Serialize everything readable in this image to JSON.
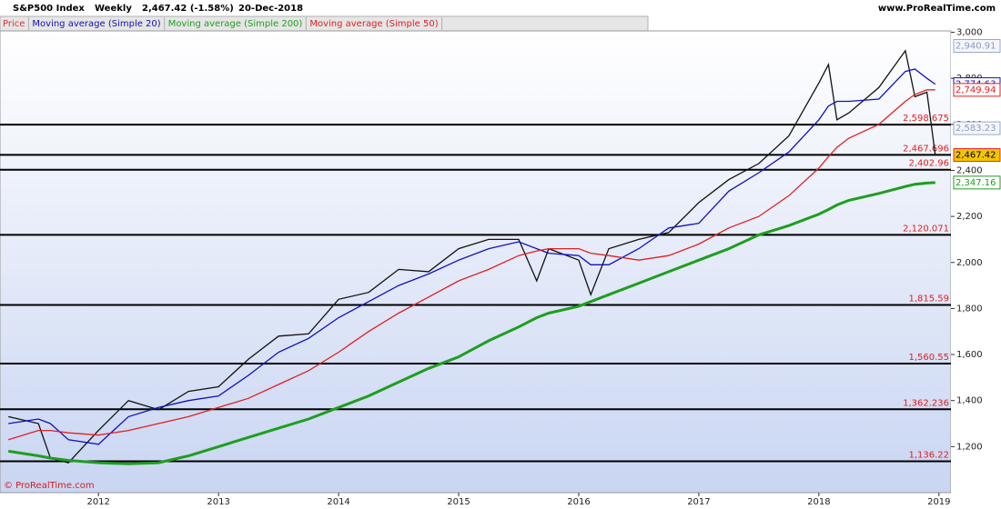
{
  "chart_data": {
    "type": "line",
    "title": "S&P500 Index",
    "period": "Weekly",
    "last": "2,467.42 (-1.58%)",
    "date": "20-Dec-2018",
    "site": "www.ProRealTime.com",
    "footer": "© ProRealTime.com",
    "x": [
      2011.25,
      2011.5,
      2011.6,
      2011.75,
      2012.0,
      2012.25,
      2012.5,
      2012.75,
      2013.0,
      2013.25,
      2013.5,
      2013.75,
      2014.0,
      2014.25,
      2014.5,
      2014.75,
      2015.0,
      2015.25,
      2015.5,
      2015.65,
      2015.75,
      2016.0,
      2016.1,
      2016.25,
      2016.5,
      2016.75,
      2017.0,
      2017.25,
      2017.5,
      2017.75,
      2018.0,
      2018.08,
      2018.15,
      2018.25,
      2018.5,
      2018.72,
      2018.8,
      2018.9,
      2018.97
    ],
    "series": [
      {
        "name": "Price",
        "color": "#111111",
        "label_color": "#e03030",
        "last_label": "2,467.42",
        "box_color": "#f5c400",
        "values": [
          1330,
          1300,
          1150,
          1130,
          1270,
          1400,
          1360,
          1440,
          1460,
          1580,
          1680,
          1690,
          1840,
          1870,
          1970,
          1960,
          2060,
          2100,
          2100,
          1920,
          2060,
          2010,
          1860,
          2060,
          2100,
          2130,
          2260,
          2360,
          2430,
          2550,
          2780,
          2860,
          2620,
          2650,
          2760,
          2920,
          2720,
          2740,
          2467
        ]
      },
      {
        "name": "Moving average (Simple 20)",
        "color": "#1010c0",
        "label_color": "#1010c0",
        "last_label": "2,774.63",
        "box_color": "#ffffff",
        "values": [
          1300,
          1320,
          1300,
          1230,
          1210,
          1330,
          1370,
          1400,
          1420,
          1510,
          1610,
          1670,
          1760,
          1830,
          1900,
          1950,
          2010,
          2060,
          2090,
          2060,
          2040,
          2030,
          1990,
          1990,
          2060,
          2150,
          2170,
          2310,
          2390,
          2480,
          2620,
          2680,
          2700,
          2700,
          2710,
          2830,
          2840,
          2800,
          2774.63
        ]
      },
      {
        "name": "Moving average (Simple 200)",
        "color": "#1e9e1e",
        "label_color": "#1e9e1e",
        "last_label": "2,347.16",
        "box_color": "#ffffff",
        "values": [
          1180,
          1160,
          1150,
          1140,
          1130,
          1125,
          1130,
          1160,
          1200,
          1240,
          1280,
          1320,
          1370,
          1420,
          1480,
          1540,
          1590,
          1660,
          1720,
          1760,
          1780,
          1810,
          1830,
          1860,
          1910,
          1960,
          2010,
          2060,
          2120,
          2160,
          2210,
          2230,
          2250,
          2270,
          2300,
          2330,
          2340,
          2345,
          2347.16
        ]
      },
      {
        "name": "Moving average (Simple 50)",
        "color": "#e02020",
        "label_color": "#e02020",
        "last_label": "2,749.94",
        "box_color": "#ffffff",
        "values": [
          1230,
          1270,
          1270,
          1260,
          1250,
          1270,
          1300,
          1330,
          1370,
          1410,
          1470,
          1530,
          1610,
          1700,
          1780,
          1850,
          1920,
          1970,
          2030,
          2050,
          2060,
          2060,
          2040,
          2030,
          2010,
          2030,
          2080,
          2150,
          2200,
          2290,
          2410,
          2460,
          2500,
          2540,
          2600,
          2700,
          2730,
          2750,
          2749.94
        ]
      }
    ],
    "levels": [
      {
        "value": 2598.675,
        "label": "2,598.675"
      },
      {
        "value": 2467.696,
        "label": "2,467.696"
      },
      {
        "value": 2402.96,
        "label": "2,402.96"
      },
      {
        "value": 2120.071,
        "label": "2,120.071"
      },
      {
        "value": 1815.59,
        "label": "1,815.59"
      },
      {
        "value": 1560.55,
        "label": "1,560.55"
      },
      {
        "value": 1362.236,
        "label": "1,362.236"
      },
      {
        "value": 1136.22,
        "label": "1,136.22"
      }
    ],
    "channel_labels": [
      {
        "value": 2940.91,
        "label": "2,940.91"
      },
      {
        "value": 2583.23,
        "label": "2,583.23"
      }
    ],
    "xlim": [
      2011.18,
      2019.1
    ],
    "xticks": [
      2012,
      2013,
      2014,
      2015,
      2016,
      2017,
      2018,
      2019
    ],
    "ylim": [
      1000,
      3010
    ],
    "yticks": [
      {
        "value": 1200,
        "label": "1,200"
      },
      {
        "value": 1400,
        "label": "1,400"
      },
      {
        "value": 1600,
        "label": "1,600"
      },
      {
        "value": 1800,
        "label": "1,800"
      },
      {
        "value": 2000,
        "label": "2,000"
      },
      {
        "value": 2200,
        "label": "2,200"
      },
      {
        "value": 2400,
        "label": "2,400"
      },
      {
        "value": 2600,
        "label": "2,600"
      },
      {
        "value": 2800,
        "label": "2,800"
      },
      {
        "value": 3000,
        "label": "3,000"
      }
    ]
  }
}
